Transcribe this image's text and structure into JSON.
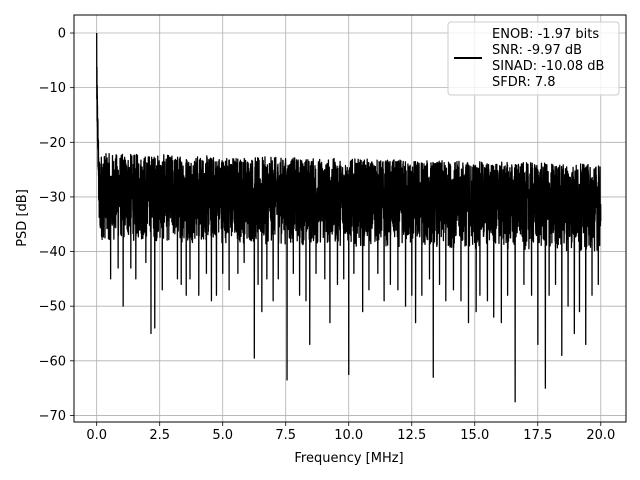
{
  "chart_data": {
    "type": "line",
    "xlabel": "Frequency [MHz]",
    "ylabel": "PSD [dB]",
    "xlim": [
      -0.9,
      21.0
    ],
    "ylim": [
      -71.2,
      3.3
    ],
    "xticks": [
      0.0,
      2.5,
      5.0,
      7.5,
      10.0,
      12.5,
      15.0,
      17.5,
      20.0
    ],
    "xtick_labels": [
      "0.0",
      "2.5",
      "5.0",
      "7.5",
      "10.0",
      "12.5",
      "15.0",
      "17.5",
      "20.0"
    ],
    "yticks": [
      0,
      -10,
      -20,
      -30,
      -40,
      -50,
      -60,
      -70
    ],
    "ytick_labels": [
      "0",
      "−10",
      "−20",
      "−30",
      "−40",
      "−50",
      "−60",
      "−70"
    ],
    "grid": true,
    "legend": {
      "placement": "upper right",
      "entries": [
        "ENOB: -1.97 bits",
        "SNR: -9.97 dB",
        "SINAD: -10.08 dB",
        "SFDR: 7.8"
      ]
    },
    "series": [
      {
        "color": "#000000",
        "x_range": [
          0.0,
          20.0
        ],
        "noise_floor_db": [
          -38,
          -22
        ],
        "peak": {
          "x": 0.0,
          "y": 0.0
        },
        "notches": [
          {
            "x": 0.1,
            "y": -33
          },
          {
            "x": 0.55,
            "y": -45
          },
          {
            "x": 0.85,
            "y": -43
          },
          {
            "x": 1.05,
            "y": -50
          },
          {
            "x": 1.35,
            "y": -43
          },
          {
            "x": 1.55,
            "y": -45
          },
          {
            "x": 1.95,
            "y": -42
          },
          {
            "x": 2.15,
            "y": -55
          },
          {
            "x": 2.3,
            "y": -54
          },
          {
            "x": 2.6,
            "y": -47
          },
          {
            "x": 3.2,
            "y": -45
          },
          {
            "x": 3.35,
            "y": -46
          },
          {
            "x": 3.55,
            "y": -48
          },
          {
            "x": 3.7,
            "y": -45
          },
          {
            "x": 4.05,
            "y": -48
          },
          {
            "x": 4.35,
            "y": -44
          },
          {
            "x": 4.55,
            "y": -49
          },
          {
            "x": 4.75,
            "y": -48
          },
          {
            "x": 5.0,
            "y": -44
          },
          {
            "x": 5.25,
            "y": -47
          },
          {
            "x": 5.6,
            "y": -44
          },
          {
            "x": 5.85,
            "y": -42
          },
          {
            "x": 6.25,
            "y": -59.5
          },
          {
            "x": 6.4,
            "y": -46
          },
          {
            "x": 6.55,
            "y": -51
          },
          {
            "x": 6.75,
            "y": -45
          },
          {
            "x": 7.0,
            "y": -49
          },
          {
            "x": 7.2,
            "y": -45
          },
          {
            "x": 7.55,
            "y": -63.5
          },
          {
            "x": 7.8,
            "y": -44
          },
          {
            "x": 8.05,
            "y": -48
          },
          {
            "x": 8.3,
            "y": -49
          },
          {
            "x": 8.45,
            "y": -57
          },
          {
            "x": 8.7,
            "y": -44
          },
          {
            "x": 9.05,
            "y": -45
          },
          {
            "x": 9.25,
            "y": -53
          },
          {
            "x": 9.55,
            "y": -46
          },
          {
            "x": 9.8,
            "y": -45
          },
          {
            "x": 10.0,
            "y": -62.5
          },
          {
            "x": 10.2,
            "y": -44
          },
          {
            "x": 10.55,
            "y": -51
          },
          {
            "x": 10.8,
            "y": -47
          },
          {
            "x": 11.15,
            "y": -44
          },
          {
            "x": 11.4,
            "y": -49
          },
          {
            "x": 11.65,
            "y": -46
          },
          {
            "x": 11.95,
            "y": -47
          },
          {
            "x": 12.25,
            "y": -50
          },
          {
            "x": 12.5,
            "y": -48
          },
          {
            "x": 12.65,
            "y": -53
          },
          {
            "x": 12.9,
            "y": -48
          },
          {
            "x": 13.2,
            "y": -45
          },
          {
            "x": 13.35,
            "y": -63
          },
          {
            "x": 13.6,
            "y": -46
          },
          {
            "x": 13.85,
            "y": -49
          },
          {
            "x": 14.15,
            "y": -47
          },
          {
            "x": 14.45,
            "y": -49
          },
          {
            "x": 14.75,
            "y": -53
          },
          {
            "x": 15.05,
            "y": -51
          },
          {
            "x": 15.2,
            "y": -48
          },
          {
            "x": 15.5,
            "y": -49
          },
          {
            "x": 15.75,
            "y": -52
          },
          {
            "x": 16.05,
            "y": -53
          },
          {
            "x": 16.3,
            "y": -48
          },
          {
            "x": 16.6,
            "y": -67.5
          },
          {
            "x": 16.95,
            "y": -46
          },
          {
            "x": 17.25,
            "y": -48
          },
          {
            "x": 17.5,
            "y": -57
          },
          {
            "x": 17.8,
            "y": -65
          },
          {
            "x": 17.95,
            "y": -48
          },
          {
            "x": 18.2,
            "y": -46
          },
          {
            "x": 18.45,
            "y": -59
          },
          {
            "x": 18.7,
            "y": -50
          },
          {
            "x": 18.95,
            "y": -55
          },
          {
            "x": 19.15,
            "y": -51
          },
          {
            "x": 19.4,
            "y": -57
          },
          {
            "x": 19.65,
            "y": -48
          },
          {
            "x": 19.9,
            "y": -46
          }
        ]
      }
    ]
  }
}
